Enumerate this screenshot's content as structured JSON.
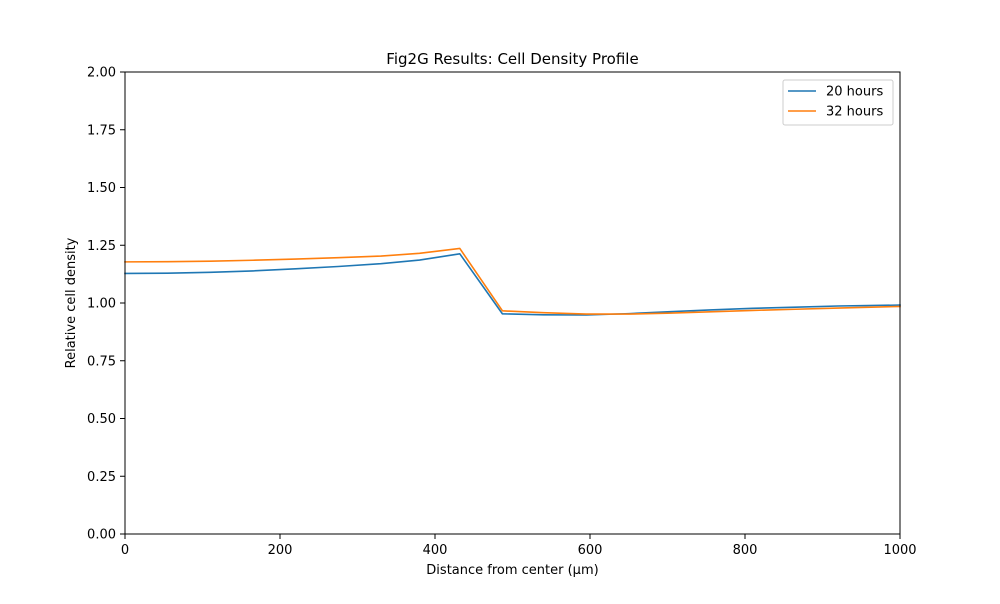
{
  "chart_data": {
    "type": "line",
    "title": "Fig2G Results: Cell Density Profile",
    "xlabel": "Distance from center (μm)",
    "ylabel": "Relative cell density",
    "xlim": [
      0,
      1000
    ],
    "ylim": [
      0,
      2
    ],
    "x_ticks": [
      0,
      200,
      400,
      600,
      800,
      1000
    ],
    "x_tick_labels": [
      "0",
      "200",
      "400",
      "600",
      "800",
      "1000"
    ],
    "y_ticks": [
      0,
      0.25,
      0.5,
      0.75,
      1.0,
      1.25,
      1.5,
      1.75,
      2.0
    ],
    "y_tick_labels": [
      "0.00",
      "0.25",
      "0.50",
      "0.75",
      "1.00",
      "1.25",
      "1.50",
      "1.75",
      "2.00"
    ],
    "grid": false,
    "legend_position": "top-right",
    "series": [
      {
        "name": "20 hours",
        "color": "#1f77b4",
        "x": [
          0,
          55,
          110,
          165,
          220,
          275,
          330,
          380,
          432,
          487,
          540,
          595,
          650,
          700,
          755,
          810,
          865,
          920,
          1000
        ],
        "y": [
          1.128,
          1.129,
          1.133,
          1.139,
          1.148,
          1.158,
          1.17,
          1.186,
          1.213,
          0.953,
          0.949,
          0.948,
          0.954,
          0.962,
          0.97,
          0.977,
          0.982,
          0.987,
          0.991
        ]
      },
      {
        "name": "32 hours",
        "color": "#ff7f0e",
        "x": [
          0,
          55,
          110,
          165,
          220,
          275,
          330,
          380,
          432,
          487,
          540,
          595,
          650,
          700,
          755,
          810,
          865,
          920,
          1000
        ],
        "y": [
          1.178,
          1.179,
          1.181,
          1.185,
          1.19,
          1.196,
          1.203,
          1.215,
          1.236,
          0.966,
          0.958,
          0.952,
          0.952,
          0.956,
          0.962,
          0.968,
          0.973,
          0.978,
          0.985
        ]
      }
    ]
  }
}
